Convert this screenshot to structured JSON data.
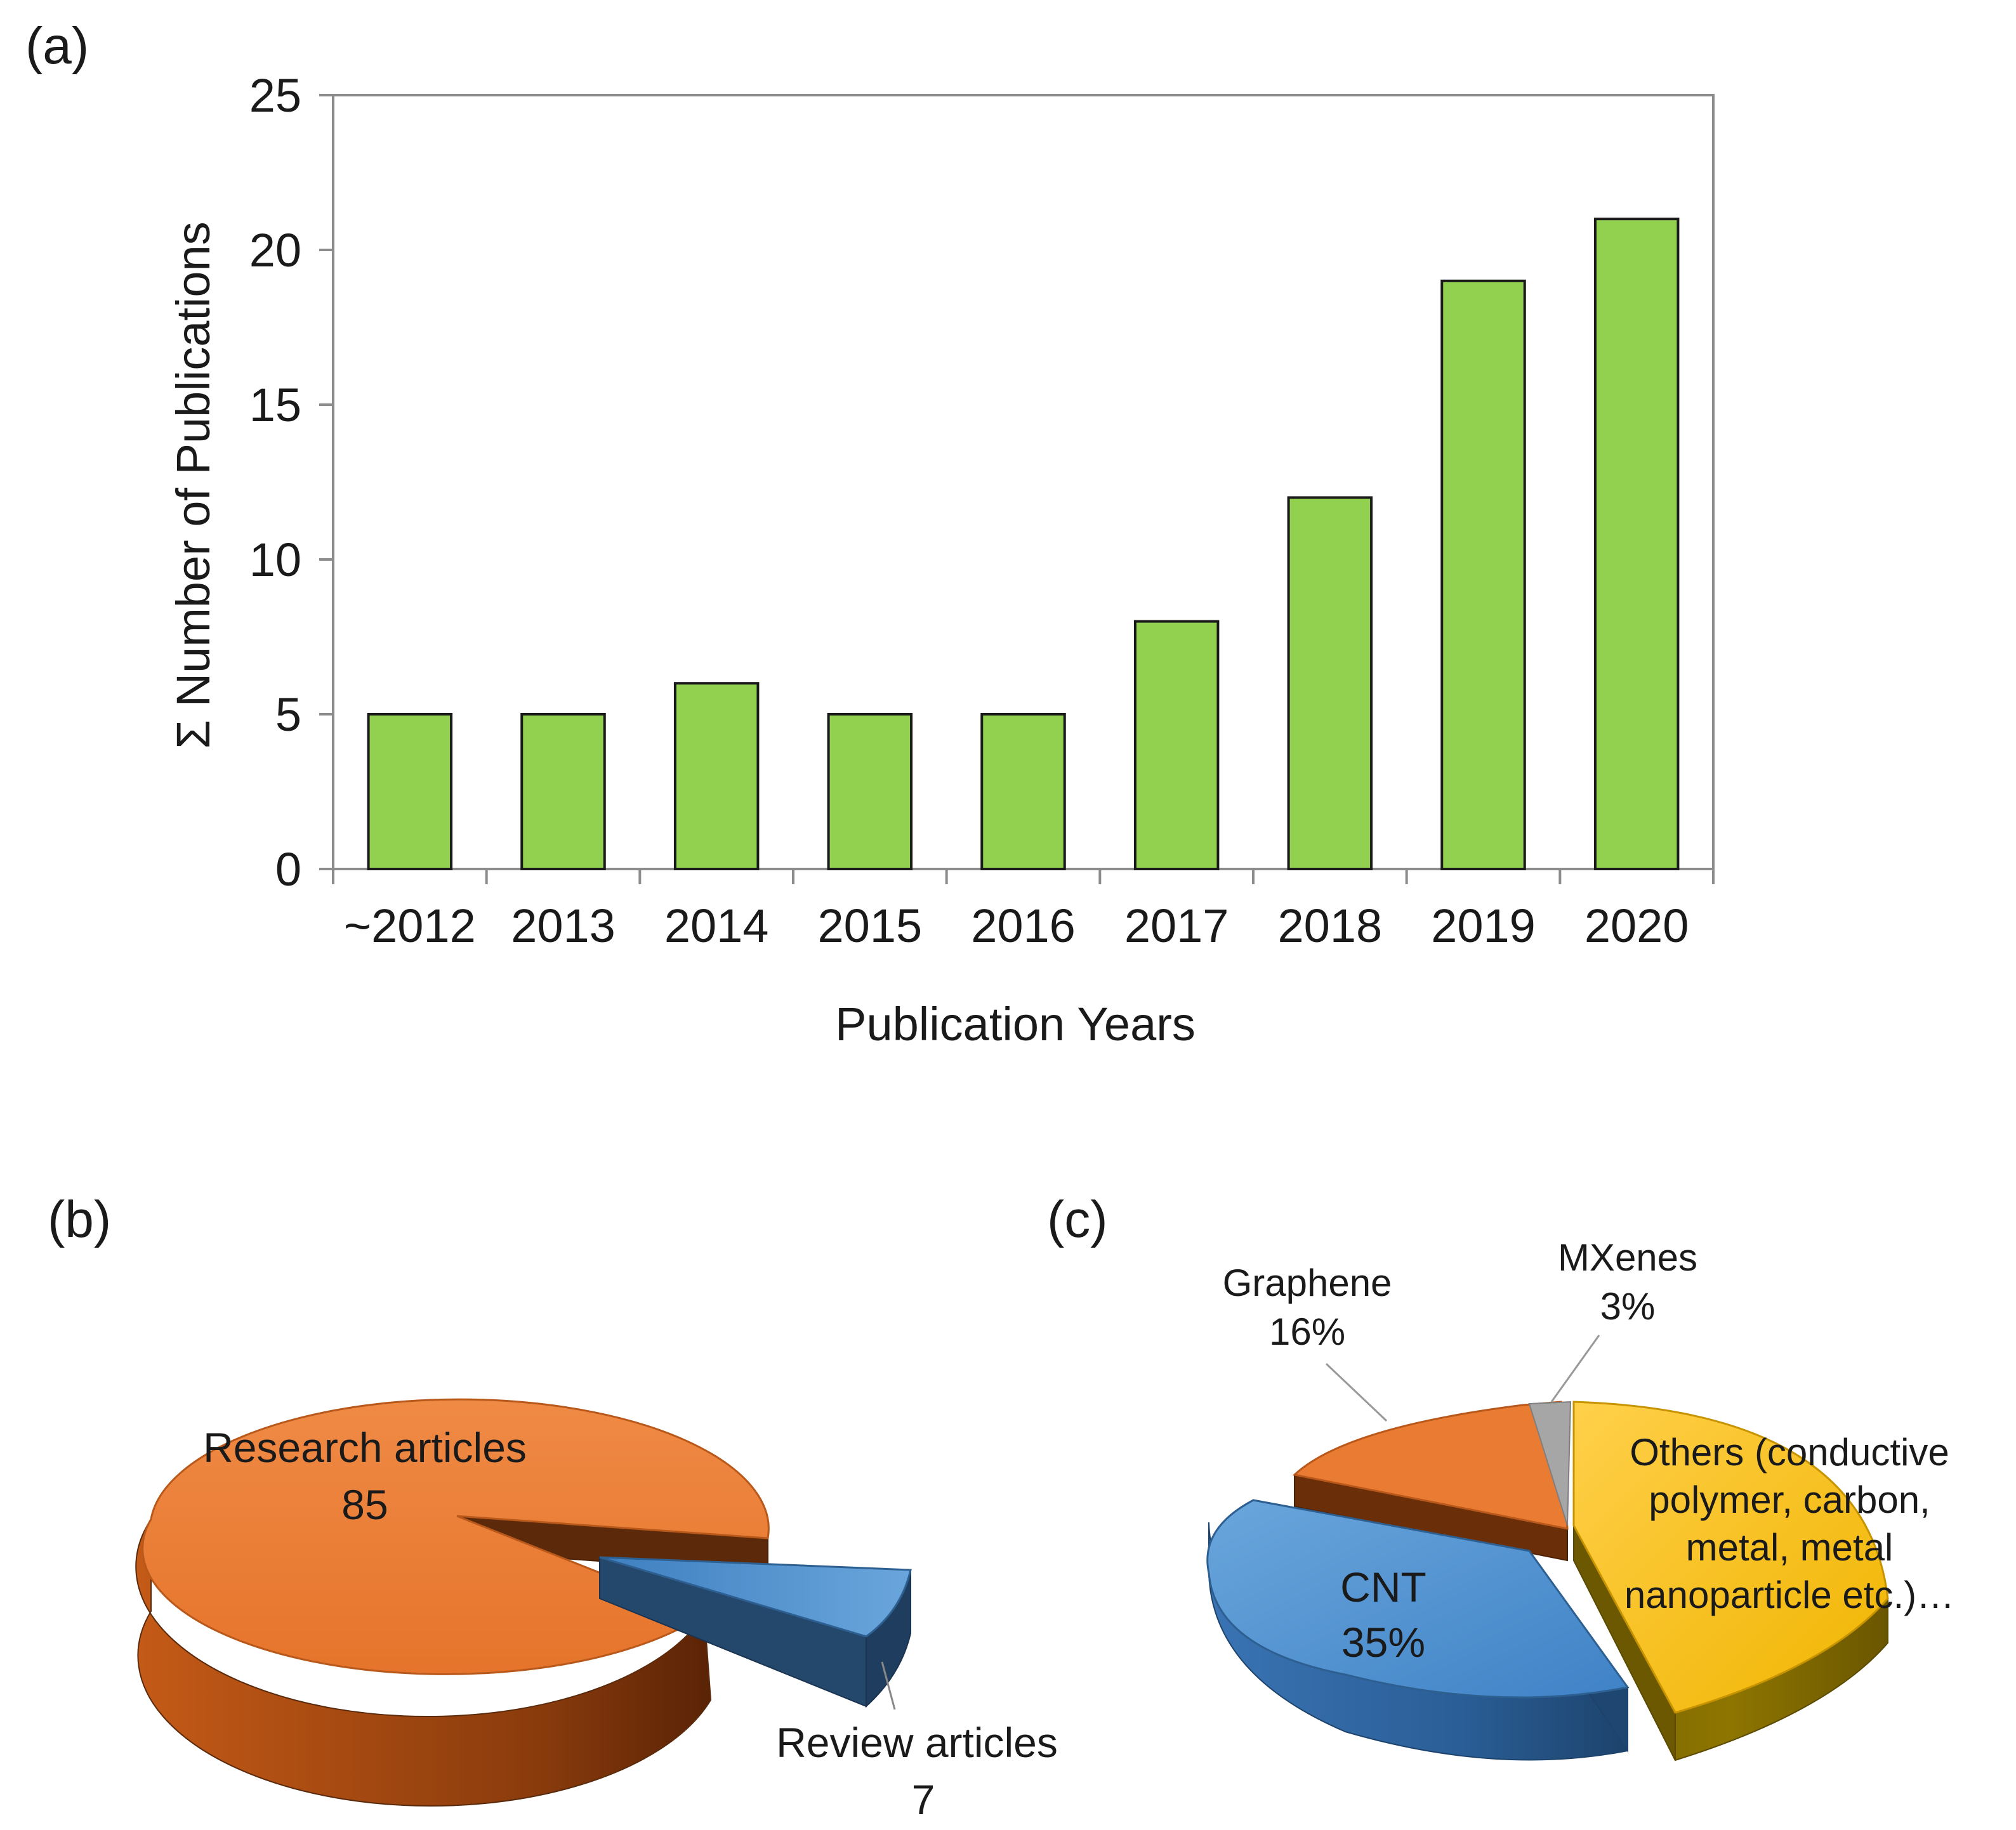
{
  "colors": {
    "bar_fill": "#92d050",
    "bar_stroke": "#1a1a1a",
    "research": "#ea7b33",
    "review": "#4a8ccc",
    "graphene": "#ea7b33",
    "cnt": "#4a8ccc",
    "mxenes": "#a6a6a6",
    "others": "#f5c000"
  },
  "chart_data": [
    {
      "panel": "(a)",
      "type": "bar",
      "categories": [
        "~2012",
        "2013",
        "2014",
        "2015",
        "2016",
        "2017",
        "2018",
        "2019",
        "2020"
      ],
      "values": [
        5,
        5,
        6,
        5,
        5,
        8,
        12,
        19,
        21
      ],
      "xlabel": "Publication Years",
      "ylabel": "Σ Number of Publications",
      "ylim": [
        0,
        25
      ],
      "yticks": [
        "0",
        "5",
        "10",
        "15",
        "20",
        "25"
      ],
      "grid": false
    },
    {
      "panel": "(b)",
      "type": "pie",
      "slices": [
        {
          "name": "Research articles",
          "value": 85,
          "label": "85"
        },
        {
          "name": "Review articles",
          "value": 7,
          "label": "7"
        }
      ]
    },
    {
      "panel": "(c)",
      "type": "pie",
      "slices": [
        {
          "name": "Graphene",
          "percent": 16,
          "label": "16%"
        },
        {
          "name": "MXenes",
          "percent": 3,
          "label": "3%"
        },
        {
          "name": "Others (conductive polymer, carbon, metal, metal nanoparticle etc.)…",
          "percent": 46,
          "label": ""
        },
        {
          "name": "CNT",
          "percent": 35,
          "label": "35%"
        }
      ],
      "others_lines": [
        "Others (conductive",
        "polymer, carbon,",
        "metal, metal",
        "nanoparticle etc.)…"
      ]
    }
  ]
}
